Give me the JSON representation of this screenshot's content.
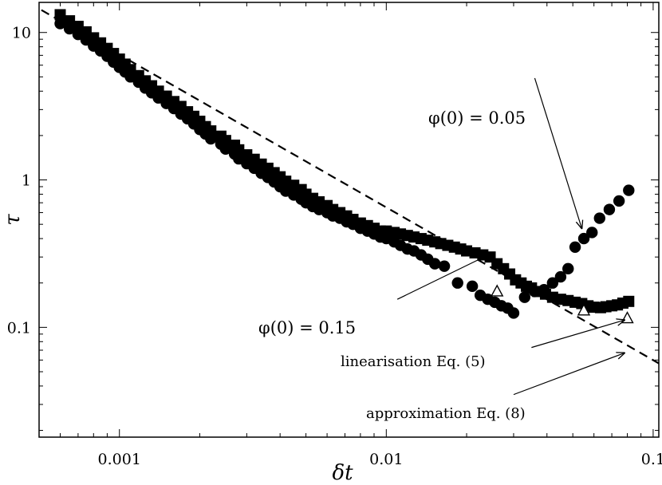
{
  "chart_data": {
    "type": "scatter",
    "x_scale": "log",
    "y_scale": "log",
    "xlabel": "δt",
    "ylabel": "τ",
    "xlim": [
      0.0005,
      0.105
    ],
    "ylim": [
      0.018,
      16
    ],
    "x_ticks": [
      {
        "value": 0.001,
        "label": "0.001"
      },
      {
        "value": 0.01,
        "label": "0.01"
      },
      {
        "value": 0.1,
        "label": "0.1"
      }
    ],
    "y_ticks": [
      {
        "value": 0.1,
        "label": "0.1"
      },
      {
        "value": 1,
        "label": "1"
      },
      {
        "value": 10,
        "label": "10"
      }
    ],
    "grid": false,
    "legend": "none",
    "series": [
      {
        "marker": "square",
        "x": [
          0.0006,
          0.00065,
          0.0007,
          0.00075,
          0.0008,
          0.00085,
          0.0009,
          0.00095,
          0.001,
          0.00105,
          0.0011,
          0.00118,
          0.00125,
          0.00132,
          0.0014,
          0.0015,
          0.0016,
          0.0017,
          0.0018,
          0.0019,
          0.002,
          0.0021,
          0.0022,
          0.0024,
          0.0025,
          0.0027,
          0.0028,
          0.003,
          0.0032,
          0.0034,
          0.0036,
          0.0038,
          0.004,
          0.0042,
          0.0045,
          0.0048,
          0.005,
          0.0053,
          0.0056,
          0.006,
          0.0063,
          0.0067,
          0.0071,
          0.0075,
          0.008,
          0.0085,
          0.009,
          0.0095,
          0.01,
          0.0107,
          0.0113,
          0.012,
          0.0127,
          0.0135,
          0.0143,
          0.0152,
          0.016,
          0.017,
          0.018,
          0.019,
          0.02,
          0.0215,
          0.023,
          0.0245,
          0.026,
          0.0275,
          0.029,
          0.0305,
          0.032,
          0.0335,
          0.035,
          0.037,
          0.0395,
          0.042,
          0.045,
          0.048,
          0.051,
          0.054,
          0.057,
          0.06,
          0.0635,
          0.0665,
          0.07,
          0.0735,
          0.077,
          0.081
        ],
        "y": [
          13.2,
          12.0,
          11.0,
          10.1,
          9.2,
          8.5,
          7.8,
          7.2,
          6.6,
          6.1,
          5.6,
          5.1,
          4.7,
          4.35,
          4.0,
          3.7,
          3.4,
          3.15,
          2.9,
          2.7,
          2.5,
          2.3,
          2.15,
          1.98,
          1.85,
          1.72,
          1.6,
          1.48,
          1.38,
          1.28,
          1.2,
          1.12,
          1.05,
          0.98,
          0.92,
          0.86,
          0.8,
          0.75,
          0.71,
          0.67,
          0.63,
          0.6,
          0.57,
          0.54,
          0.51,
          0.49,
          0.47,
          0.45,
          0.45,
          0.44,
          0.43,
          0.42,
          0.41,
          0.4,
          0.39,
          0.38,
          0.37,
          0.36,
          0.35,
          0.34,
          0.33,
          0.32,
          0.31,
          0.3,
          0.27,
          0.25,
          0.23,
          0.21,
          0.2,
          0.19,
          0.185,
          0.175,
          0.168,
          0.16,
          0.155,
          0.152,
          0.148,
          0.145,
          0.14,
          0.137,
          0.136,
          0.138,
          0.14,
          0.142,
          0.146,
          0.15
        ]
      },
      {
        "marker": "circle",
        "x": [
          0.0006,
          0.00065,
          0.0007,
          0.00075,
          0.0008,
          0.00085,
          0.0009,
          0.00095,
          0.001,
          0.00105,
          0.0011,
          0.00118,
          0.00125,
          0.00132,
          0.0014,
          0.0015,
          0.0016,
          0.0017,
          0.0018,
          0.0019,
          0.002,
          0.0021,
          0.0022,
          0.0024,
          0.0025,
          0.0027,
          0.0028,
          0.003,
          0.0032,
          0.0034,
          0.0036,
          0.0038,
          0.004,
          0.0042,
          0.0045,
          0.0048,
          0.005,
          0.0053,
          0.0056,
          0.006,
          0.0063,
          0.0067,
          0.0071,
          0.0075,
          0.008,
          0.0085,
          0.009,
          0.0095,
          0.01,
          0.0107,
          0.0113,
          0.012,
          0.0127,
          0.0135,
          0.0143,
          0.0152,
          0.0165,
          0.0185,
          0.021,
          0.0225,
          0.024,
          0.0255,
          0.027,
          0.0285,
          0.03,
          0.033,
          0.036,
          0.039,
          0.042,
          0.045,
          0.048,
          0.051,
          0.055,
          0.059,
          0.063,
          0.0685,
          0.0745,
          0.081
        ],
        "y": [
          11.5,
          10.6,
          9.7,
          8.9,
          8.1,
          7.5,
          6.9,
          6.3,
          5.8,
          5.4,
          5.0,
          4.6,
          4.2,
          3.9,
          3.6,
          3.3,
          3.05,
          2.8,
          2.6,
          2.4,
          2.2,
          2.05,
          1.9,
          1.75,
          1.62,
          1.5,
          1.39,
          1.29,
          1.2,
          1.11,
          1.04,
          0.97,
          0.9,
          0.84,
          0.79,
          0.74,
          0.7,
          0.66,
          0.63,
          0.6,
          0.57,
          0.55,
          0.52,
          0.5,
          0.47,
          0.45,
          0.43,
          0.41,
          0.4,
          0.38,
          0.36,
          0.34,
          0.33,
          0.31,
          0.29,
          0.27,
          0.26,
          0.2,
          0.19,
          0.165,
          0.155,
          0.148,
          0.14,
          0.135,
          0.125,
          0.16,
          0.175,
          0.18,
          0.2,
          0.22,
          0.25,
          0.35,
          0.4,
          0.44,
          0.55,
          0.63,
          0.72,
          0.85
        ]
      },
      {
        "marker": "open-triangle",
        "x": [
          0.026,
          0.055,
          0.08
        ],
        "y": [
          0.175,
          0.13,
          0.115
        ]
      }
    ],
    "reference_line": {
      "style": "dashed",
      "x": [
        0.00051,
        0.105
      ],
      "y": [
        14.2,
        0.057
      ]
    },
    "annotations": [
      {
        "text": "φ(0) = 0.05",
        "arrow_from": [
          0.036,
          4.9
        ],
        "arrow_to": [
          0.054,
          0.47
        ]
      },
      {
        "text": "φ(0) = 0.15",
        "arrow_from": [
          0.011,
          0.155
        ],
        "arrow_to": [
          0.025,
          0.32
        ]
      },
      {
        "text": "linearisation Eq. (5)",
        "arrow_from": [
          0.035,
          0.073
        ],
        "arrow_to": [
          0.078,
          0.112
        ]
      },
      {
        "text": "approximation Eq. (8)",
        "arrow_from": [
          0.03,
          0.035
        ],
        "arrow_to": [
          0.078,
          0.067
        ]
      }
    ]
  }
}
